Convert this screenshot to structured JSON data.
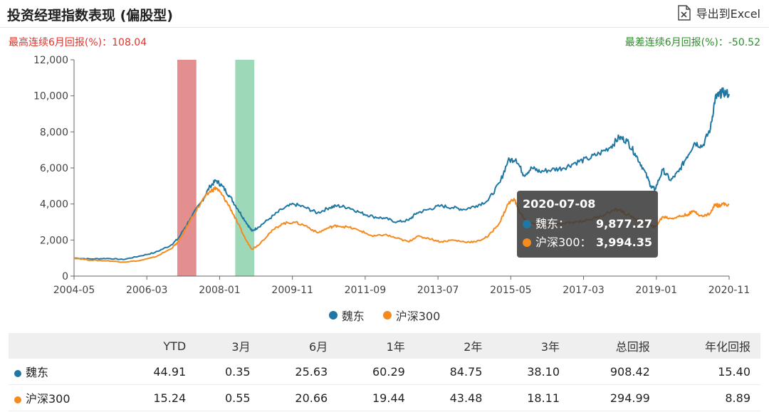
{
  "header": {
    "title": "投资经理指数表现 (偏股型)",
    "export_label": "导出到Excel"
  },
  "stats": {
    "best_label": "最高连续6月回报(%)：108.04",
    "worst_label": "最差连续6月回报(%)：-50.52"
  },
  "colors": {
    "fund": "#1f77a4",
    "index": "#f58a1f",
    "best_band": "#d96a6a",
    "worst_band": "#7ccba0"
  },
  "chart_data": {
    "type": "line",
    "x_ticks": [
      "2004-05",
      "2006-03",
      "2008-01",
      "2009-11",
      "2011-09",
      "2013-07",
      "2015-05",
      "2017-03",
      "2019-01",
      "2020-11"
    ],
    "y_ticks": [
      "0",
      "2,000",
      "4,000",
      "6,000",
      "8,000",
      "10,000",
      "12,000"
    ],
    "ylim": [
      0,
      12000
    ],
    "xlim": [
      2004.37,
      2020.87
    ],
    "grid": false,
    "bands": [
      {
        "name": "best",
        "x": [
          2006.97,
          2007.45
        ]
      },
      {
        "name": "worst",
        "x": [
          2008.43,
          2008.91
        ]
      }
    ],
    "series": [
      {
        "name": "魏东",
        "points": [
          [
            2004.37,
            1000
          ],
          [
            2004.8,
            950
          ],
          [
            2005.2,
            980
          ],
          [
            2005.6,
            920
          ],
          [
            2006.0,
            1100
          ],
          [
            2006.4,
            1300
          ],
          [
            2006.8,
            1700
          ],
          [
            2007.0,
            2100
          ],
          [
            2007.3,
            3200
          ],
          [
            2007.6,
            4200
          ],
          [
            2007.8,
            5000
          ],
          [
            2007.95,
            5300
          ],
          [
            2008.1,
            5000
          ],
          [
            2008.3,
            4400
          ],
          [
            2008.5,
            3700
          ],
          [
            2008.7,
            3000
          ],
          [
            2008.85,
            2500
          ],
          [
            2009.0,
            2700
          ],
          [
            2009.3,
            3200
          ],
          [
            2009.6,
            3700
          ],
          [
            2009.9,
            4000
          ],
          [
            2010.2,
            3800
          ],
          [
            2010.5,
            3500
          ],
          [
            2010.8,
            3800
          ],
          [
            2011.0,
            3900
          ],
          [
            2011.3,
            3800
          ],
          [
            2011.6,
            3500
          ],
          [
            2011.9,
            3300
          ],
          [
            2012.2,
            3200
          ],
          [
            2012.5,
            3000
          ],
          [
            2012.8,
            3100
          ],
          [
            2013.0,
            3500
          ],
          [
            2013.3,
            3700
          ],
          [
            2013.6,
            3900
          ],
          [
            2013.9,
            3800
          ],
          [
            2014.2,
            3700
          ],
          [
            2014.5,
            3900
          ],
          [
            2014.8,
            4200
          ],
          [
            2015.1,
            5200
          ],
          [
            2015.3,
            6400
          ],
          [
            2015.5,
            6500
          ],
          [
            2015.7,
            5600
          ],
          [
            2015.9,
            6000
          ],
          [
            2016.1,
            5800
          ],
          [
            2016.4,
            5900
          ],
          [
            2016.7,
            6000
          ],
          [
            2017.0,
            6300
          ],
          [
            2017.3,
            6500
          ],
          [
            2017.6,
            6800
          ],
          [
            2017.9,
            7200
          ],
          [
            2018.1,
            7700
          ],
          [
            2018.3,
            7500
          ],
          [
            2018.5,
            6800
          ],
          [
            2018.7,
            6000
          ],
          [
            2018.9,
            5000
          ],
          [
            2019.0,
            4800
          ],
          [
            2019.2,
            5900
          ],
          [
            2019.4,
            5300
          ],
          [
            2019.6,
            5800
          ],
          [
            2019.8,
            6600
          ],
          [
            2020.0,
            7400
          ],
          [
            2020.2,
            7200
          ],
          [
            2020.4,
            8200
          ],
          [
            2020.52,
            9880
          ],
          [
            2020.6,
            10000
          ],
          [
            2020.7,
            10200
          ],
          [
            2020.87,
            10100
          ]
        ]
      },
      {
        "name": "沪深300",
        "points": [
          [
            2004.37,
            1000
          ],
          [
            2004.8,
            880
          ],
          [
            2005.2,
            850
          ],
          [
            2005.6,
            780
          ],
          [
            2006.0,
            850
          ],
          [
            2006.4,
            1050
          ],
          [
            2006.8,
            1500
          ],
          [
            2007.0,
            1900
          ],
          [
            2007.3,
            3100
          ],
          [
            2007.6,
            4200
          ],
          [
            2007.8,
            4700
          ],
          [
            2007.95,
            4900
          ],
          [
            2008.1,
            4500
          ],
          [
            2008.3,
            3800
          ],
          [
            2008.5,
            2900
          ],
          [
            2008.7,
            2000
          ],
          [
            2008.85,
            1500
          ],
          [
            2009.0,
            1700
          ],
          [
            2009.3,
            2400
          ],
          [
            2009.6,
            2900
          ],
          [
            2009.9,
            3000
          ],
          [
            2010.2,
            2800
          ],
          [
            2010.5,
            2400
          ],
          [
            2010.8,
            2700
          ],
          [
            2011.0,
            2800
          ],
          [
            2011.3,
            2700
          ],
          [
            2011.6,
            2500
          ],
          [
            2011.9,
            2200
          ],
          [
            2012.2,
            2300
          ],
          [
            2012.5,
            2100
          ],
          [
            2012.8,
            1900
          ],
          [
            2013.0,
            2200
          ],
          [
            2013.3,
            2100
          ],
          [
            2013.6,
            1900
          ],
          [
            2013.9,
            2000
          ],
          [
            2014.2,
            1900
          ],
          [
            2014.5,
            1900
          ],
          [
            2014.8,
            2200
          ],
          [
            2015.1,
            3000
          ],
          [
            2015.3,
            4000
          ],
          [
            2015.45,
            4300
          ],
          [
            2015.6,
            3500
          ],
          [
            2015.8,
            3000
          ],
          [
            2016.1,
            2800
          ],
          [
            2016.4,
            2800
          ],
          [
            2016.7,
            2900
          ],
          [
            2017.0,
            3000
          ],
          [
            2017.3,
            3100
          ],
          [
            2017.6,
            3300
          ],
          [
            2017.9,
            3600
          ],
          [
            2018.1,
            3700
          ],
          [
            2018.3,
            3400
          ],
          [
            2018.5,
            3200
          ],
          [
            2018.7,
            3000
          ],
          [
            2018.9,
            2800
          ],
          [
            2019.0,
            2700
          ],
          [
            2019.2,
            3300
          ],
          [
            2019.4,
            3200
          ],
          [
            2019.6,
            3300
          ],
          [
            2019.8,
            3400
          ],
          [
            2020.0,
            3600
          ],
          [
            2020.2,
            3300
          ],
          [
            2020.4,
            3500
          ],
          [
            2020.52,
            3994
          ],
          [
            2020.6,
            3900
          ],
          [
            2020.7,
            4000
          ],
          [
            2020.87,
            3950
          ]
        ]
      }
    ],
    "tooltip": {
      "date": "2020-07-08",
      "x": 2020.52,
      "rows": [
        {
          "label": "魏东：",
          "value": "9,877.27"
        },
        {
          "label": "沪深300：",
          "value": "3,994.35"
        }
      ]
    }
  },
  "legend": [
    {
      "label": "魏东"
    },
    {
      "label": "沪深300"
    }
  ],
  "table": {
    "headers": [
      "",
      "YTD",
      "3月",
      "6月",
      "1年",
      "2年",
      "3年",
      "总回报",
      "年化回报"
    ],
    "rows": [
      {
        "name": "魏东",
        "values": [
          "44.91",
          "0.35",
          "25.63",
          "60.29",
          "84.75",
          "38.10",
          "908.42",
          "15.40"
        ]
      },
      {
        "name": "沪深300",
        "values": [
          "15.24",
          "0.55",
          "20.66",
          "19.44",
          "43.48",
          "18.11",
          "294.99",
          "8.89"
        ]
      }
    ]
  }
}
